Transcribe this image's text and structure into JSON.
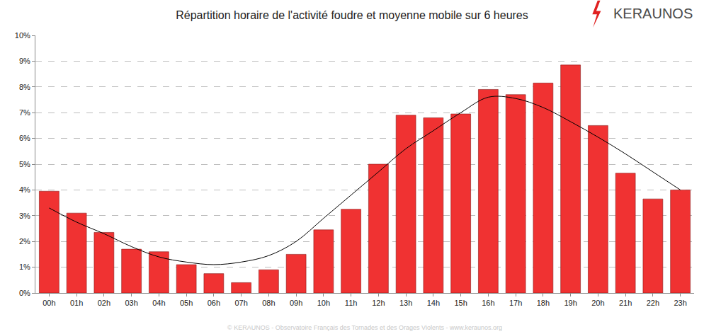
{
  "chart_data": {
    "type": "bar",
    "title": "Répartition horaire de l'activité foudre et moyenne mobile sur 6 heures",
    "annotations": [
      "KERAUNOS",
      "© KERAUNOS - Observatoire Français des Tornades et des Orages Violents - www.keraunos.org"
    ],
    "categories": [
      "00h",
      "01h",
      "02h",
      "03h",
      "04h",
      "05h",
      "06h",
      "07h",
      "08h",
      "09h",
      "10h",
      "11h",
      "12h",
      "13h",
      "14h",
      "15h",
      "16h",
      "17h",
      "18h",
      "19h",
      "20h",
      "21h",
      "22h",
      "23h"
    ],
    "series": [
      {
        "type": "bar",
        "color": "#f03232",
        "values": [
          3.95,
          3.1,
          2.35,
          1.7,
          1.6,
          1.1,
          0.75,
          0.4,
          0.9,
          1.5,
          2.45,
          3.25,
          5.0,
          6.9,
          6.8,
          6.95,
          7.9,
          7.7,
          8.15,
          8.85,
          6.5,
          4.65,
          3.65,
          4.0
        ]
      },
      {
        "type": "line",
        "color": "#000000",
        "line_style": "solid",
        "values": [
          3.3,
          2.75,
          2.3,
          1.8,
          1.4,
          1.2,
          1.1,
          1.2,
          1.45,
          2.0,
          2.9,
          3.8,
          4.7,
          5.6,
          6.3,
          7.0,
          7.6,
          7.55,
          7.2,
          6.65,
          6.05,
          5.4,
          4.7,
          4.0
        ]
      }
    ],
    "ylim": [
      0,
      10
    ],
    "yticks": [
      {
        "value": 0,
        "label": "0%"
      },
      {
        "value": 1,
        "label": "1%"
      },
      {
        "value": 2,
        "label": "2%"
      },
      {
        "value": 3,
        "label": "3%"
      },
      {
        "value": 4,
        "label": "4%"
      },
      {
        "value": 5,
        "label": "5%"
      },
      {
        "value": 6,
        "label": "6%"
      },
      {
        "value": 7,
        "label": "7%"
      },
      {
        "value": 8,
        "label": "8%"
      },
      {
        "value": 9,
        "label": "9%"
      },
      {
        "value": 10,
        "label": "10%"
      }
    ],
    "grid": true
  }
}
